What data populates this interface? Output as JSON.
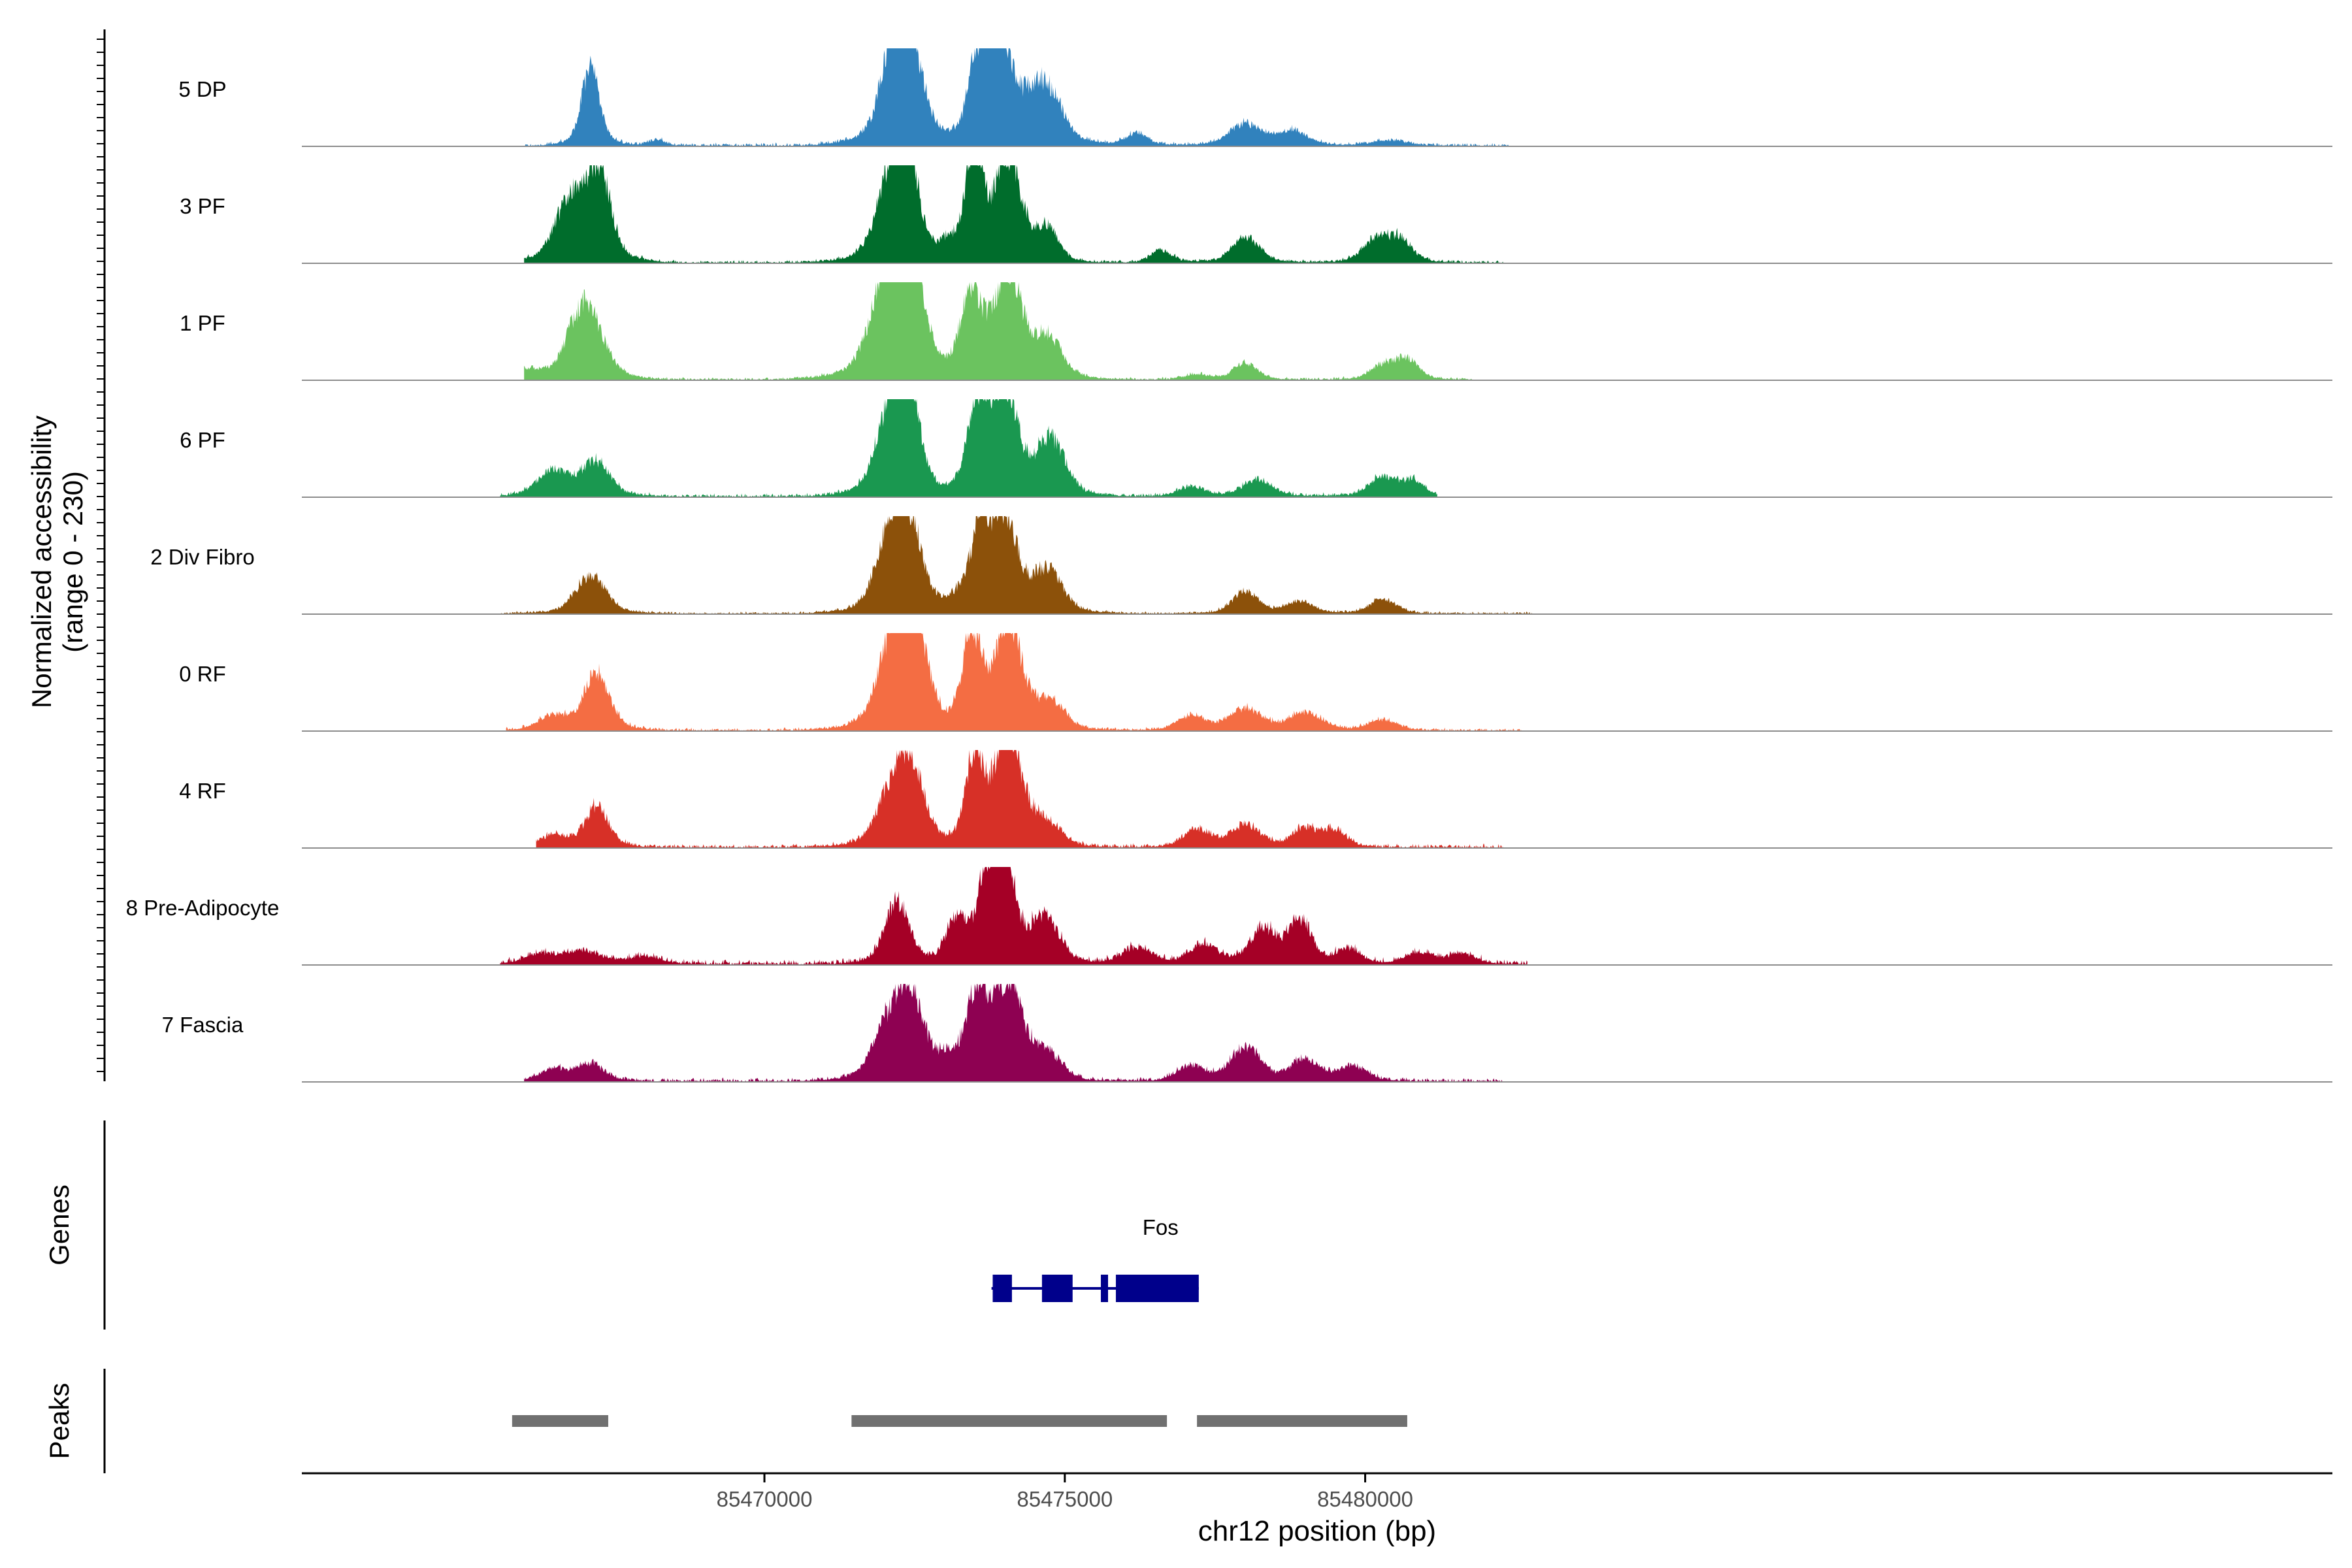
{
  "chart_data": {
    "type": "area",
    "title": "",
    "xlabel": "chr12 position (bp)",
    "ylabel_line1": "Normalized accessibility",
    "ylabel_line2": "(range 0 - 230)",
    "yrange": [
      0,
      230
    ],
    "xlim": [
      85462300,
      85496100
    ],
    "x_ticks": [
      85470000,
      85475000,
      85480000
    ],
    "x_tick_labels": [
      "85470000",
      "85475000",
      "85480000"
    ],
    "tracks": [
      {
        "name": "5 DP",
        "color": "#3182bd",
        "peaks": [
          [
            85467100,
            160,
            0.16,
            120,
            85466000,
            85468900
          ],
          [
            85468200,
            12,
            0.06,
            120,
            85466000,
            85468900
          ],
          [
            85472200,
            95,
            0.15,
            210,
            85471500,
            85474000
          ],
          [
            85472300,
            230,
            0.19,
            200,
            85471500,
            85474000
          ],
          [
            85473550,
            170,
            0.22,
            120,
            85471500,
            85474000
          ],
          [
            85473900,
            230,
            0.18,
            150,
            85471500,
            85474000
          ],
          [
            85474550,
            110,
            0.11,
            250,
            85471500,
            85474000
          ],
          [
            85474800,
            35,
            0.06,
            200,
            85471500,
            85474000
          ],
          [
            85476200,
            25,
            0.1,
            150,
            85476000,
            85480500
          ],
          [
            85478000,
            45,
            0.14,
            220,
            85476000,
            85480500
          ],
          [
            85478800,
            30,
            0.12,
            200,
            85476000,
            85480500
          ],
          [
            85480400,
            12,
            0.06,
            250,
            85476000,
            85480500
          ]
        ],
        "baseline": 8,
        "range": [
          85466000,
          85482400
        ]
      },
      {
        "name": "3 PF",
        "color": "#006d2c",
        "peaks": [
          [
            85466800,
            130,
            0.18,
            220,
            85465500,
            85468000
          ],
          [
            85467250,
            170,
            0.14,
            150,
            85465500,
            85468000
          ],
          [
            85472100,
            150,
            0.16,
            210,
            85471500,
            85474000
          ],
          [
            85472350,
            175,
            0.2,
            150,
            85471500,
            85474000
          ],
          [
            85473150,
            35,
            0.08,
            220,
            85471500,
            85474000
          ],
          [
            85473500,
            230,
            0.16,
            110,
            85471500,
            85474000
          ],
          [
            85474050,
            220,
            0.24,
            160,
            85471500,
            85474000
          ],
          [
            85474700,
            70,
            0.12,
            150,
            85471500,
            85474000
          ],
          [
            85476600,
            25,
            0.1,
            150,
            85476000,
            85481000
          ],
          [
            85478000,
            55,
            0.14,
            180,
            85476000,
            85481000
          ],
          [
            85480200,
            50,
            0.14,
            190,
            85476000,
            85481000
          ],
          [
            85480600,
            40,
            0.12,
            150,
            85476000,
            85481000
          ]
        ],
        "baseline": 7,
        "range": [
          85466000,
          85482300
        ]
      },
      {
        "name": "1 PF",
        "color": "#6bc35f",
        "peaks": [
          [
            85466000,
            20,
            0.1,
            250,
            85465500,
            85468000
          ],
          [
            85467000,
            160,
            0.24,
            200,
            85465500,
            85468000
          ],
          [
            85472100,
            200,
            0.14,
            250,
            85471500,
            85474000
          ],
          [
            85472350,
            230,
            0.18,
            200,
            85471500,
            85474000
          ],
          [
            85473450,
            180,
            0.16,
            140,
            85471500,
            85474000
          ],
          [
            85474050,
            230,
            0.22,
            160,
            85471500,
            85474000
          ],
          [
            85474700,
            85,
            0.13,
            200,
            85471500,
            85474000
          ],
          [
            85477200,
            10,
            0.06,
            200,
            85476000,
            85481000
          ],
          [
            85478000,
            35,
            0.12,
            160,
            85476000,
            85481000
          ],
          [
            85480300,
            30,
            0.1,
            180,
            85476000,
            85481000
          ],
          [
            85480700,
            40,
            0.14,
            150,
            85476000,
            85481000
          ]
        ],
        "baseline": 6,
        "range": [
          85466000,
          85481800
        ]
      },
      {
        "name": "6 PF",
        "color": "#1a9850",
        "peaks": [
          [
            85466500,
            55,
            0.16,
            220,
            85465500,
            85468000
          ],
          [
            85467200,
            70,
            0.14,
            180,
            85465500,
            85468000
          ],
          [
            85472100,
            160,
            0.17,
            200,
            85471500,
            85474000
          ],
          [
            85472350,
            210,
            0.2,
            150,
            85471500,
            85474000
          ],
          [
            85473550,
            200,
            0.18,
            140,
            85471500,
            85474000
          ],
          [
            85474000,
            220,
            0.22,
            150,
            85471500,
            85474000
          ],
          [
            85474750,
            120,
            0.13,
            200,
            85471500,
            85474000
          ],
          [
            85477100,
            20,
            0.08,
            200,
            85476000,
            85481000
          ],
          [
            85478200,
            35,
            0.12,
            200,
            85476000,
            85481000
          ],
          [
            85480300,
            40,
            0.12,
            190,
            85476000,
            85481000
          ],
          [
            85480800,
            30,
            0.1,
            150,
            85476000,
            85481000
          ]
        ],
        "baseline": 8,
        "range": [
          85465600,
          85481200
        ]
      },
      {
        "name": "2 Div Fibro",
        "color": "#8c510a",
        "peaks": [
          [
            85467100,
            80,
            0.14,
            200,
            85466000,
            85468000
          ],
          [
            85472100,
            160,
            0.16,
            200,
            85471500,
            85474000
          ],
          [
            85472400,
            150,
            0.22,
            160,
            85471500,
            85474000
          ],
          [
            85473300,
            35,
            0.1,
            200,
            85471500,
            85474000
          ],
          [
            85473600,
            185,
            0.18,
            110,
            85471500,
            85474000
          ],
          [
            85474000,
            200,
            0.22,
            150,
            85471500,
            85474000
          ],
          [
            85474700,
            90,
            0.14,
            200,
            85471500,
            85474000
          ],
          [
            85478000,
            45,
            0.14,
            180,
            85476000,
            85481000
          ],
          [
            85478900,
            25,
            0.08,
            200,
            85476000,
            85481000
          ],
          [
            85480300,
            30,
            0.1,
            180,
            85476000,
            85481000
          ]
        ],
        "baseline": 6,
        "range": [
          85465600,
          85482800
        ]
      },
      {
        "name": "0 RF",
        "color": "#f46d43",
        "peaks": [
          [
            85466500,
            30,
            0.1,
            220,
            85466000,
            85468000
          ],
          [
            85467200,
            120,
            0.2,
            160,
            85466000,
            85468000
          ],
          [
            85472200,
            200,
            0.17,
            220,
            85471500,
            85474000
          ],
          [
            85472450,
            190,
            0.24,
            160,
            85471500,
            85474000
          ],
          [
            85473450,
            195,
            0.16,
            130,
            85471500,
            85474000
          ],
          [
            85474050,
            230,
            0.24,
            160,
            85471500,
            85474000
          ],
          [
            85474750,
            60,
            0.1,
            200,
            85471500,
            85474000
          ],
          [
            85477100,
            30,
            0.1,
            200,
            85476000,
            85481000
          ],
          [
            85478000,
            45,
            0.14,
            220,
            85476000,
            85481000
          ],
          [
            85479000,
            38,
            0.12,
            220,
            85476000,
            85481000
          ],
          [
            85480300,
            22,
            0.08,
            200,
            85476000,
            85481000
          ]
        ],
        "baseline": 7,
        "range": [
          85465700,
          85482600
        ]
      },
      {
        "name": "4 RF",
        "color": "#d73027",
        "peaks": [
          [
            85466500,
            25,
            0.1,
            200,
            85466000,
            85468000
          ],
          [
            85467200,
            85,
            0.18,
            150,
            85466000,
            85468000
          ],
          [
            85472150,
            120,
            0.14,
            220,
            85471500,
            85474000
          ],
          [
            85472450,
            130,
            0.2,
            160,
            85471500,
            85474000
          ],
          [
            85473500,
            190,
            0.16,
            120,
            85471500,
            85474000
          ],
          [
            85474050,
            225,
            0.24,
            170,
            85471500,
            85474000
          ],
          [
            85474700,
            45,
            0.1,
            200,
            85471500,
            85474000
          ],
          [
            85477200,
            35,
            0.1,
            200,
            85476000,
            85481000
          ],
          [
            85478000,
            45,
            0.14,
            200,
            85476000,
            85481000
          ],
          [
            85479000,
            40,
            0.12,
            180,
            85476000,
            85481000
          ],
          [
            85479500,
            35,
            0.1,
            150,
            85476000,
            85481000
          ]
        ],
        "baseline": 9,
        "range": [
          85466200,
          85482300
        ]
      },
      {
        "name": "8 Pre-Adipocyte",
        "color": "#a50026",
        "peaks": [
          [
            85466300,
            20,
            0.08,
            250,
            85465500,
            85469000
          ],
          [
            85467000,
            25,
            0.08,
            250,
            85465500,
            85469000
          ],
          [
            85468000,
            15,
            0.06,
            250,
            85465500,
            85469000
          ],
          [
            85472200,
            130,
            0.18,
            160,
            85471500,
            85474000
          ],
          [
            85473200,
            90,
            0.14,
            150,
            85471500,
            85474000
          ],
          [
            85473700,
            170,
            0.2,
            120,
            85471500,
            85474000
          ],
          [
            85474000,
            220,
            0.2,
            120,
            85471500,
            85474000
          ],
          [
            85474650,
            100,
            0.12,
            200,
            85471500,
            85474000
          ],
          [
            85476200,
            35,
            0.1,
            200,
            85476000,
            85482000
          ],
          [
            85477300,
            40,
            0.1,
            200,
            85476000,
            85482000
          ],
          [
            85478300,
            70,
            0.12,
            190,
            85476000,
            85482000
          ],
          [
            85478900,
            90,
            0.14,
            150,
            85476000,
            85482000
          ],
          [
            85479700,
            30,
            0.1,
            180,
            85476000,
            85482000
          ],
          [
            85480900,
            25,
            0.08,
            200,
            85476000,
            85482000
          ],
          [
            85481600,
            20,
            0.08,
            200,
            85476000,
            85482000
          ]
        ],
        "baseline": 12,
        "range": [
          85465600,
          85482700
        ]
      },
      {
        "name": "7 Fascia",
        "color": "#8e0152",
        "peaks": [
          [
            85466500,
            25,
            0.1,
            200,
            85466000,
            85468000
          ],
          [
            85467100,
            35,
            0.12,
            180,
            85466000,
            85468000
          ],
          [
            85472100,
            130,
            0.14,
            220,
            85471500,
            85474000
          ],
          [
            85472450,
            145,
            0.2,
            150,
            85471500,
            85474000
          ],
          [
            85473100,
            45,
            0.1,
            200,
            85471500,
            85474000
          ],
          [
            85473550,
            185,
            0.17,
            130,
            85471500,
            85474000
          ],
          [
            85474050,
            200,
            0.24,
            170,
            85471500,
            85474000
          ],
          [
            85474700,
            55,
            0.1,
            200,
            85471500,
            85474000
          ],
          [
            85477100,
            30,
            0.1,
            200,
            85476000,
            85481000
          ],
          [
            85478000,
            70,
            0.14,
            200,
            85476000,
            85481000
          ],
          [
            85479000,
            45,
            0.12,
            200,
            85476000,
            85481000
          ],
          [
            85479800,
            30,
            0.1,
            200,
            85476000,
            85481000
          ]
        ],
        "baseline": 9,
        "range": [
          85466000,
          85482300
        ]
      }
    ],
    "genes_label": "Genes",
    "gene": {
      "name": "Fos",
      "color": "#00008b",
      "tx_start": 85473780,
      "tx_end": 85477230,
      "exons": [
        [
          85473800,
          85474120
        ],
        [
          85474620,
          85475130
        ],
        [
          85475600,
          85475720
        ],
        [
          85475850,
          85477230
        ]
      ]
    },
    "peaks_label": "Peaks",
    "peak_regions": [
      [
        85465800,
        85467400
      ],
      [
        85471450,
        85476700
      ],
      [
        85477200,
        85480700
      ]
    ],
    "peak_color": "#707070"
  }
}
